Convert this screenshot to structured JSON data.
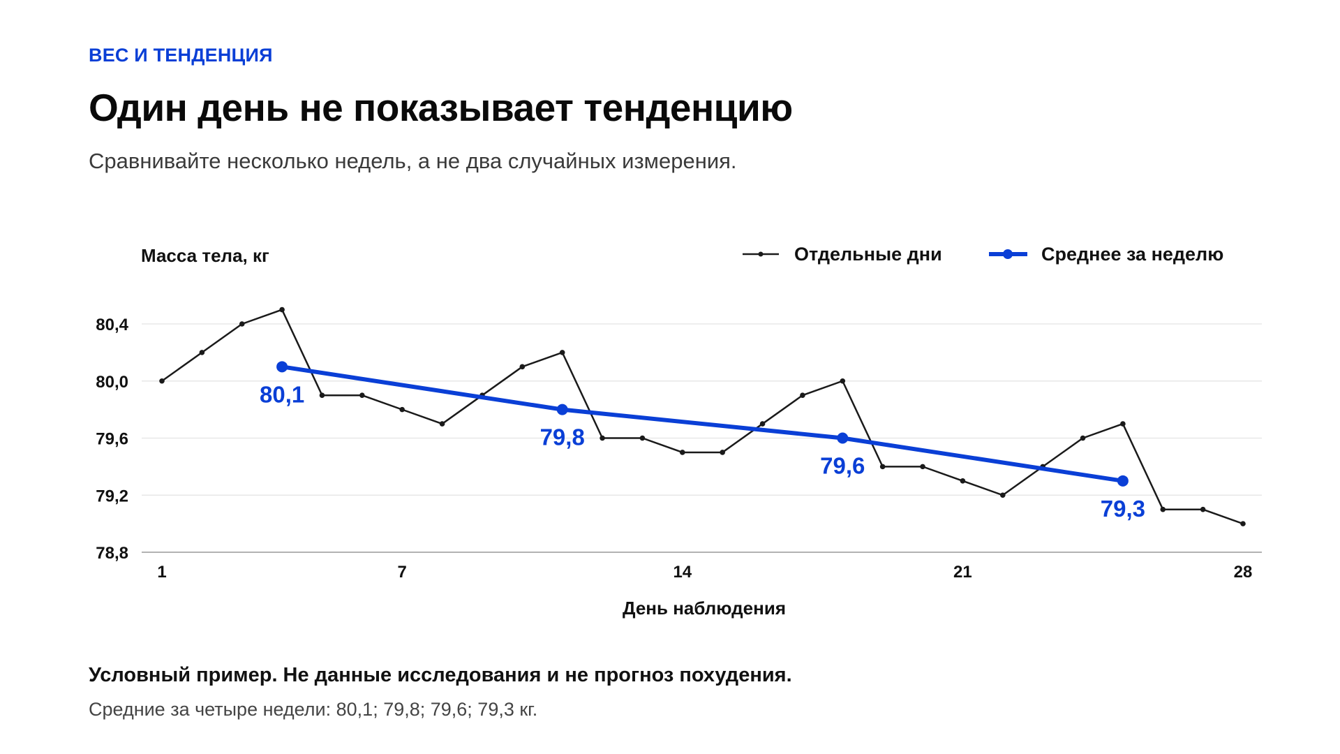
{
  "header": {
    "eyebrow": "ВЕС И ТЕНДЕНЦИЯ",
    "title": "Один день не показывает тенденцию",
    "subtitle": "Сравнивайте несколько недель, а не два случайных измерения."
  },
  "footer": {
    "note_bold": "Условный пример. Не данные исследования и не прогноз похудения.",
    "note": "Средние за четыре недели: 80,1; 79,8; 79,6; 79,3 кг."
  },
  "colors": {
    "accent": "#0a3fd6",
    "daily_line": "#1a1a1a",
    "grid": "#e3e3e3",
    "axis": "#999999"
  },
  "chart_data": {
    "type": "line",
    "ylabel": "Масса тела, кг",
    "xlabel": "День наблюдения",
    "xlim": [
      1,
      28
    ],
    "ylim": [
      78.8,
      80.4
    ],
    "x_ticks": [
      1,
      7,
      14,
      21,
      28
    ],
    "y_ticks": [
      78.8,
      79.2,
      79.6,
      80.0,
      80.4
    ],
    "y_tick_labels": [
      "78,8",
      "79,2",
      "79,6",
      "80,0",
      "80,4"
    ],
    "legend_position": "top-right",
    "grid": true,
    "series": [
      {
        "name": "Отдельные дни",
        "color": "#1a1a1a",
        "x": [
          1,
          2,
          3,
          4,
          5,
          6,
          7,
          8,
          9,
          10,
          11,
          12,
          13,
          14,
          15,
          16,
          17,
          18,
          19,
          20,
          21,
          22,
          23,
          24,
          25,
          26,
          27,
          28
        ],
        "values": [
          80.0,
          80.2,
          80.4,
          80.5,
          79.9,
          79.9,
          79.8,
          79.7,
          79.9,
          80.1,
          80.2,
          79.6,
          79.6,
          79.5,
          79.5,
          79.7,
          79.9,
          80.0,
          79.4,
          79.4,
          79.3,
          79.2,
          79.4,
          79.6,
          79.7,
          79.1,
          79.1,
          79.0
        ]
      },
      {
        "name": "Среднее за неделю",
        "color": "#0a3fd6",
        "x": [
          4,
          11,
          18,
          25
        ],
        "values": [
          80.1,
          79.8,
          79.6,
          79.3
        ],
        "labels": [
          "80,1",
          "79,8",
          "79,6",
          "79,3"
        ]
      }
    ]
  }
}
